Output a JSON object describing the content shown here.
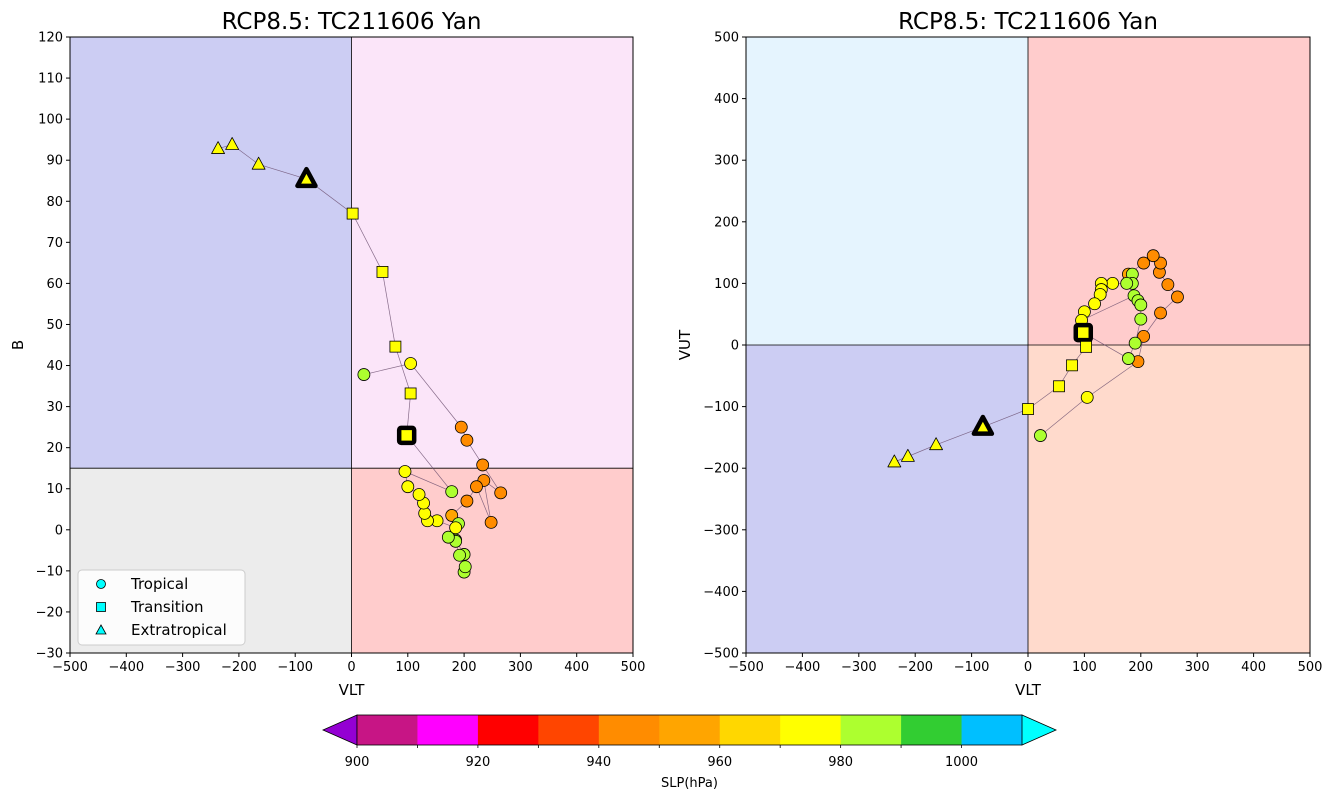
{
  "chart_data": [
    {
      "type": "scatter",
      "title": "RCP8.5: TC211606 Yan",
      "xlabel": "VLT",
      "ylabel": "B",
      "xlim": [
        -500,
        500
      ],
      "ylim": [
        -30,
        120
      ],
      "x_ticks": [
        -500,
        -400,
        -300,
        -200,
        -100,
        0,
        100,
        200,
        300,
        400,
        500
      ],
      "y_ticks": [
        -30,
        -20,
        -10,
        0,
        10,
        20,
        30,
        40,
        50,
        60,
        70,
        80,
        90,
        100,
        110,
        120
      ],
      "x_tick_labels": [
        "−500",
        "−400",
        "−300",
        "−200",
        "−100",
        "0",
        "100",
        "200",
        "300",
        "400",
        "500"
      ],
      "y_tick_labels": [
        "−30",
        "−20",
        "−10",
        "0",
        "10",
        "20",
        "30",
        "40",
        "50",
        "60",
        "70",
        "80",
        "90",
        "100",
        "110",
        "120"
      ],
      "grid": false,
      "quadrant_split": {
        "x": 0,
        "y": 15
      },
      "quadrant_colors": {
        "top_left": "#cccdf3",
        "top_right": "#fbe5f9",
        "bottom_left": "#ececec",
        "bottom_right": "#ffcccc"
      },
      "legend": {
        "placement": "lower-left",
        "entries": [
          {
            "label": "Tropical",
            "marker": "circle"
          },
          {
            "label": "Transition",
            "marker": "square"
          },
          {
            "label": "Extratropical",
            "marker": "triangle"
          }
        ]
      },
      "track": [
        {
          "x": 22,
          "y": 37.8,
          "slp": 981,
          "marker": "circle"
        },
        {
          "x": 105,
          "y": 40.5,
          "slp": 975,
          "marker": "circle"
        },
        {
          "x": 195,
          "y": 25,
          "slp": 948,
          "marker": "circle"
        },
        {
          "x": 205,
          "y": 21.8,
          "slp": 948,
          "marker": "circle"
        },
        {
          "x": 233,
          "y": 15.8,
          "slp": 948,
          "marker": "circle"
        },
        {
          "x": 265,
          "y": 9,
          "slp": 948,
          "marker": "circle"
        },
        {
          "x": 235,
          "y": 12,
          "slp": 948,
          "marker": "circle"
        },
        {
          "x": 248,
          "y": 1.8,
          "slp": 948,
          "marker": "circle"
        },
        {
          "x": 222,
          "y": 10.5,
          "slp": 948,
          "marker": "circle"
        },
        {
          "x": 205,
          "y": 7,
          "slp": 948,
          "marker": "circle"
        },
        {
          "x": 178,
          "y": 3.5,
          "slp": 958,
          "marker": "circle"
        },
        {
          "x": 190,
          "y": 1.5,
          "slp": 980,
          "marker": "circle"
        },
        {
          "x": 185,
          "y": -2.5,
          "slp": 981,
          "marker": "circle"
        },
        {
          "x": 200,
          "y": -6,
          "slp": 981,
          "marker": "circle"
        },
        {
          "x": 200,
          "y": -10.3,
          "slp": 981,
          "marker": "circle"
        },
        {
          "x": 202,
          "y": -9,
          "slp": 981,
          "marker": "circle"
        },
        {
          "x": 192,
          "y": -6.2,
          "slp": 981,
          "marker": "circle"
        },
        {
          "x": 185,
          "y": -2.8,
          "slp": 981,
          "marker": "circle"
        },
        {
          "x": 172,
          "y": -1.8,
          "slp": 981,
          "marker": "circle"
        },
        {
          "x": 185,
          "y": 0.5,
          "slp": 975,
          "marker": "circle"
        },
        {
          "x": 152,
          "y": 2.2,
          "slp": 972,
          "marker": "circle"
        },
        {
          "x": 135,
          "y": 2.2,
          "slp": 975,
          "marker": "circle"
        },
        {
          "x": 130,
          "y": 4,
          "slp": 975,
          "marker": "circle"
        },
        {
          "x": 128,
          "y": 6.5,
          "slp": 975,
          "marker": "circle"
        },
        {
          "x": 120,
          "y": 8.6,
          "slp": 975,
          "marker": "circle"
        },
        {
          "x": 100,
          "y": 10.5,
          "slp": 975,
          "marker": "circle"
        },
        {
          "x": 95,
          "y": 14.2,
          "slp": 975,
          "marker": "circle"
        },
        {
          "x": 178,
          "y": 9.3,
          "slp": 981,
          "marker": "circle"
        },
        {
          "x": 98,
          "y": 23,
          "slp": 975,
          "marker": "square",
          "highlight": true
        },
        {
          "x": 105,
          "y": 33.2,
          "slp": 975,
          "marker": "square"
        },
        {
          "x": 78,
          "y": 44.6,
          "slp": 975,
          "marker": "square"
        },
        {
          "x": 55,
          "y": 62.8,
          "slp": 975,
          "marker": "square"
        },
        {
          "x": 2,
          "y": 77,
          "slp": 975,
          "marker": "square"
        },
        {
          "x": -80,
          "y": 85.4,
          "slp": 975,
          "marker": "triangle",
          "highlight": true
        },
        {
          "x": -165,
          "y": 89,
          "slp": 975,
          "marker": "triangle"
        },
        {
          "x": -212,
          "y": 93.8,
          "slp": 975,
          "marker": "triangle"
        },
        {
          "x": -237,
          "y": 92.8,
          "slp": 975,
          "marker": "triangle"
        }
      ]
    },
    {
      "type": "scatter",
      "title": "RCP8.5: TC211606 Yan",
      "xlabel": "VLT",
      "ylabel": "VUT",
      "xlim": [
        -500,
        500
      ],
      "ylim": [
        -500,
        500
      ],
      "x_ticks": [
        -500,
        -400,
        -300,
        -200,
        -100,
        0,
        100,
        200,
        300,
        400,
        500
      ],
      "y_ticks": [
        -500,
        -400,
        -300,
        -200,
        -100,
        0,
        100,
        200,
        300,
        400,
        500
      ],
      "x_tick_labels": [
        "−500",
        "−400",
        "−300",
        "−200",
        "−100",
        "0",
        "100",
        "200",
        "300",
        "400",
        "500"
      ],
      "y_tick_labels": [
        "−500",
        "−400",
        "−300",
        "−200",
        "−100",
        "0",
        "100",
        "200",
        "300",
        "400",
        "500"
      ],
      "grid": false,
      "quadrant_split": {
        "x": 0,
        "y": 0
      },
      "quadrant_colors": {
        "top_left": "#e5f4fe",
        "top_right": "#ffcccc",
        "bottom_left": "#cccdf3",
        "bottom_right": "#ffdacc"
      },
      "track": [
        {
          "x": 22,
          "y": -147,
          "slp": 981,
          "marker": "circle"
        },
        {
          "x": 105,
          "y": -85,
          "slp": 975,
          "marker": "circle"
        },
        {
          "x": 195,
          "y": -27,
          "slp": 948,
          "marker": "circle"
        },
        {
          "x": 205,
          "y": 14,
          "slp": 948,
          "marker": "circle"
        },
        {
          "x": 235,
          "y": 52,
          "slp": 948,
          "marker": "circle"
        },
        {
          "x": 265,
          "y": 78,
          "slp": 948,
          "marker": "circle"
        },
        {
          "x": 248,
          "y": 98,
          "slp": 948,
          "marker": "circle"
        },
        {
          "x": 233,
          "y": 118,
          "slp": 948,
          "marker": "circle"
        },
        {
          "x": 235,
          "y": 133,
          "slp": 948,
          "marker": "circle"
        },
        {
          "x": 222,
          "y": 145,
          "slp": 948,
          "marker": "circle"
        },
        {
          "x": 205,
          "y": 133,
          "slp": 948,
          "marker": "circle"
        },
        {
          "x": 178,
          "y": 115,
          "slp": 958,
          "marker": "circle"
        },
        {
          "x": 185,
          "y": 115,
          "slp": 980,
          "marker": "circle"
        },
        {
          "x": 185,
          "y": 100,
          "slp": 981,
          "marker": "circle"
        },
        {
          "x": 175,
          "y": 100,
          "slp": 981,
          "marker": "circle"
        },
        {
          "x": 150,
          "y": 100,
          "slp": 975,
          "marker": "circle"
        },
        {
          "x": 130,
          "y": 100,
          "slp": 975,
          "marker": "circle"
        },
        {
          "x": 130,
          "y": 90,
          "slp": 975,
          "marker": "circle"
        },
        {
          "x": 128,
          "y": 82,
          "slp": 975,
          "marker": "circle"
        },
        {
          "x": 118,
          "y": 67,
          "slp": 975,
          "marker": "circle"
        },
        {
          "x": 100,
          "y": 54,
          "slp": 975,
          "marker": "circle"
        },
        {
          "x": 95,
          "y": 40,
          "slp": 975,
          "marker": "circle"
        },
        {
          "x": 188,
          "y": 80,
          "slp": 981,
          "marker": "circle"
        },
        {
          "x": 195,
          "y": 72,
          "slp": 981,
          "marker": "circle"
        },
        {
          "x": 200,
          "y": 65,
          "slp": 981,
          "marker": "circle"
        },
        {
          "x": 200,
          "y": 42,
          "slp": 981,
          "marker": "circle"
        },
        {
          "x": 190,
          "y": 3,
          "slp": 981,
          "marker": "circle"
        },
        {
          "x": 178,
          "y": -22,
          "slp": 981,
          "marker": "circle"
        },
        {
          "x": 98,
          "y": 20,
          "slp": 975,
          "marker": "square",
          "highlight": true
        },
        {
          "x": 103,
          "y": -3,
          "slp": 975,
          "marker": "square"
        },
        {
          "x": 78,
          "y": -33,
          "slp": 975,
          "marker": "square"
        },
        {
          "x": 55,
          "y": -67,
          "slp": 975,
          "marker": "square"
        },
        {
          "x": 0,
          "y": -104,
          "slp": 975,
          "marker": "square"
        },
        {
          "x": -80,
          "y": -133,
          "slp": 975,
          "marker": "triangle",
          "highlight": true
        },
        {
          "x": -163,
          "y": -162,
          "slp": 975,
          "marker": "triangle"
        },
        {
          "x": -213,
          "y": -181,
          "slp": 975,
          "marker": "triangle"
        },
        {
          "x": -237,
          "y": -190,
          "slp": 975,
          "marker": "triangle"
        }
      ]
    }
  ],
  "colorbar": {
    "label": "SLP(hPa)",
    "under_color": "#9400d3",
    "over_color": "#00ffff",
    "bins": [
      {
        "from": 900,
        "to": 910,
        "color": "#c71585"
      },
      {
        "from": 910,
        "to": 920,
        "color": "#ff00ff"
      },
      {
        "from": 920,
        "to": 930,
        "color": "#ff0000"
      },
      {
        "from": 930,
        "to": 940,
        "color": "#ff4500"
      },
      {
        "from": 940,
        "to": 950,
        "color": "#ff8c00"
      },
      {
        "from": 950,
        "to": 960,
        "color": "#ffa500"
      },
      {
        "from": 960,
        "to": 970,
        "color": "#ffd700"
      },
      {
        "from": 970,
        "to": 980,
        "color": "#ffff00"
      },
      {
        "from": 980,
        "to": 990,
        "color": "#adff2f"
      },
      {
        "from": 990,
        "to": 1000,
        "color": "#32cd32"
      },
      {
        "from": 1000,
        "to": 1010,
        "color": "#00bfff"
      }
    ],
    "tick_labels": [
      {
        "value": 900,
        "label": "900"
      },
      {
        "value": 920,
        "label": "920"
      },
      {
        "value": 940,
        "label": "940"
      },
      {
        "value": 960,
        "label": "960"
      },
      {
        "value": 980,
        "label": "980"
      },
      {
        "value": 1000,
        "label": "1000"
      }
    ]
  }
}
